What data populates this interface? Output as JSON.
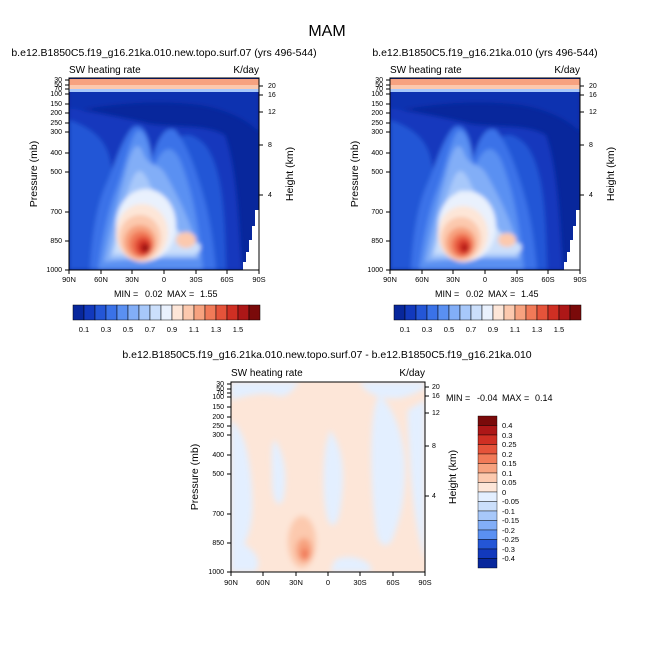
{
  "figure": {
    "title": "MAM",
    "cbar_a_levels": [
      "0.1",
      "0.3",
      "0.5",
      "0.7",
      "0.9",
      "1.1",
      "1.3",
      "1.5"
    ],
    "cbar_a_colors": [
      "#08279c",
      "#1239bd",
      "#2456d6",
      "#3a72e8",
      "#5a90f2",
      "#82aef7",
      "#a7c8fa",
      "#cbdffb",
      "#e9f1fd",
      "#fde6d8",
      "#fcc9ae",
      "#f7a27f",
      "#f17a58",
      "#e5533a",
      "#cf2f23",
      "#ad1717",
      "#7a0a0a"
    ],
    "cbar_b_levels": [
      "0.4",
      "0.3",
      "0.25",
      "0.2",
      "0.15",
      "0.1",
      "0.05",
      "0",
      "-0.05",
      "-0.1",
      "-0.15",
      "-0.2",
      "-0.25",
      "-0.3",
      "-0.4"
    ],
    "cbar_b_colors": [
      "#7a0a0a",
      "#ad1717",
      "#cf2f23",
      "#e5533a",
      "#f17a58",
      "#f7a27f",
      "#fcc9ae",
      "#fde6d8",
      "#e3efff",
      "#cbdffb",
      "#a7c8fa",
      "#82aef7",
      "#5a90f2",
      "#2456d6",
      "#1239bd",
      "#08279c"
    ]
  },
  "chart_data": [
    {
      "type": "heatmap",
      "title": "b.e12.B1850C5.f19_g16.21ka.010.new.topo.surf.07 (yrs 496-544)",
      "left_label": "SW heating rate",
      "right_label": "K/day",
      "ylabel": "Pressure (mb)",
      "ylabel_right": "Height (km)",
      "xticks": [
        "90N",
        "60N",
        "30N",
        "0",
        "30S",
        "60S",
        "90S"
      ],
      "yticks": [
        "30",
        "50",
        "70",
        "100",
        "150",
        "200",
        "250",
        "300",
        "400",
        "500",
        "700",
        "850",
        "1000"
      ],
      "yticks_right": [
        "20",
        "16",
        "12",
        "8",
        "4"
      ],
      "min_label": "MIN =",
      "min": "0.02",
      "max_label": "MAX =",
      "max": "1.55",
      "range": [
        0,
        1.6
      ]
    },
    {
      "type": "heatmap",
      "title": "b.e12.B1850C5.f19_g16.21ka.010 (yrs 496-544)",
      "left_label": "SW heating rate",
      "right_label": "K/day",
      "ylabel": "Pressure (mb)",
      "ylabel_right": "Height (km)",
      "xticks": [
        "90N",
        "60N",
        "30N",
        "0",
        "30S",
        "60S",
        "90S"
      ],
      "yticks": [
        "30",
        "50",
        "70",
        "100",
        "150",
        "200",
        "250",
        "300",
        "400",
        "500",
        "700",
        "850",
        "1000"
      ],
      "yticks_right": [
        "20",
        "16",
        "12",
        "8",
        "4"
      ],
      "min_label": "MIN =",
      "min": "0.02",
      "max_label": "MAX =",
      "max": "1.45",
      "range": [
        0,
        1.6
      ]
    },
    {
      "type": "heatmap",
      "title": "b.e12.B1850C5.f19_g16.21ka.010.new.topo.surf.07 - b.e12.B1850C5.f19_g16.21ka.010",
      "left_label": "SW heating rate",
      "right_label": "K/day",
      "ylabel": "Pressure (mb)",
      "ylabel_right": "Height (km)",
      "xticks": [
        "90N",
        "60N",
        "30N",
        "0",
        "30S",
        "60S",
        "90S"
      ],
      "yticks": [
        "30",
        "50",
        "70",
        "100",
        "150",
        "200",
        "250",
        "300",
        "400",
        "500",
        "700",
        "850",
        "1000"
      ],
      "yticks_right": [
        "20",
        "16",
        "12",
        "8",
        "4"
      ],
      "min_label": "MIN =",
      "min": "-0.04",
      "max_label": "MAX =",
      "max": "0.14",
      "range": [
        -0.45,
        0.45
      ]
    }
  ]
}
